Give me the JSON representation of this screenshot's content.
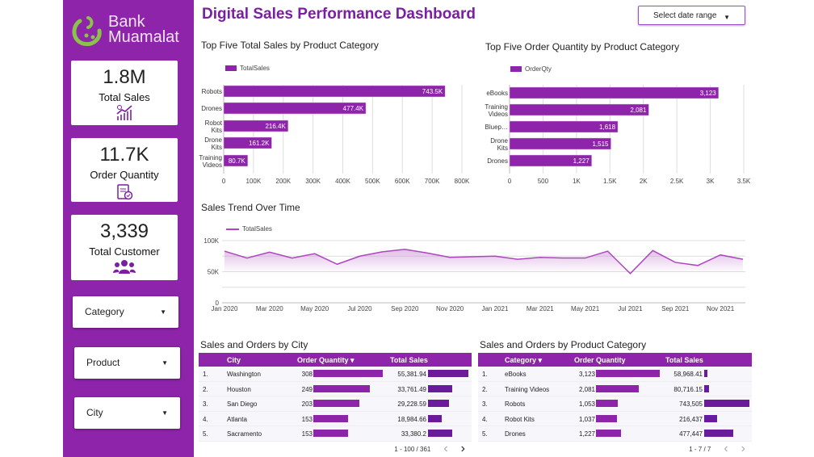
{
  "brand": {
    "line1": "Bank",
    "line2": "Muamalat",
    "logo_color": "#8bc34a"
  },
  "title": "Digital Sales Performance Dashboard",
  "date_range": {
    "label": "Select date range"
  },
  "kpis": [
    {
      "value": "1.8M",
      "label": "Total Sales",
      "icon": "chart-growth-icon"
    },
    {
      "value": "11.7K",
      "label": "Order Quantity",
      "icon": "clipboard-check-icon"
    },
    {
      "value": "3,339",
      "label": "Total Customer",
      "icon": "users-icon"
    }
  ],
  "filters": [
    {
      "label": "Category"
    },
    {
      "label": "Product"
    },
    {
      "label": "City"
    }
  ],
  "colors": {
    "accent": "#8e24aa",
    "bar_dark": "#6a1b9a",
    "sidebar": "#8e24aa"
  },
  "chart_data": [
    {
      "type": "bar",
      "orientation": "horizontal",
      "title": "Top Five Total Sales by Product Category",
      "legend": "TotalSales",
      "categories": [
        "Robots",
        "Drones",
        "Robot Kits",
        "Drone Kits",
        "Training Videos"
      ],
      "values": [
        743500,
        477400,
        216400,
        161200,
        80700
      ],
      "data_labels": [
        "743.5K",
        "477.4K",
        "216.4K",
        "161.2K",
        "80.7K"
      ],
      "xlim": [
        0,
        800000
      ],
      "ticks": [
        "0",
        "100K",
        "200K",
        "300K",
        "400K",
        "500K",
        "600K",
        "700K",
        "800K"
      ],
      "grid": true,
      "legend_position": "top-left"
    },
    {
      "type": "bar",
      "orientation": "horizontal",
      "title": "Top Five Order Quantity by Product Category",
      "legend": "OrderQty",
      "categories": [
        "eBooks",
        "Training Videos",
        "Bluep…",
        "Drone Kits",
        "Drones"
      ],
      "values": [
        3123,
        2081,
        1618,
        1515,
        1227
      ],
      "data_labels": [
        "3,123",
        "2,081",
        "1,618",
        "1,515",
        "1,227"
      ],
      "xlim": [
        0,
        3500
      ],
      "ticks": [
        "0",
        "500",
        "1K",
        "1.5K",
        "2K",
        "2.5K",
        "3K",
        "3.5K"
      ],
      "grid": true,
      "legend_position": "top-left"
    },
    {
      "type": "area",
      "title": "Sales Trend Over Time",
      "legend": "TotalSales",
      "x": [
        "2020-01",
        "2020-02",
        "2020-03",
        "2020-04",
        "2020-05",
        "2020-06",
        "2020-07",
        "2020-08",
        "2020-09",
        "2020-10",
        "2020-11",
        "2020-12",
        "2021-01",
        "2021-02",
        "2021-03",
        "2021-04",
        "2021-05",
        "2021-06",
        "2021-07",
        "2021-08",
        "2021-09",
        "2021-10",
        "2021-11",
        "2021-12"
      ],
      "values": [
        83000,
        72000,
        81500,
        72000,
        79000,
        62000,
        75000,
        82000,
        86000,
        80000,
        73000,
        74000,
        75000,
        70000,
        73000,
        72000,
        72000,
        83000,
        47000,
        84000,
        65000,
        60000,
        77000,
        70000
      ],
      "ylim": [
        0,
        100000
      ],
      "yticks": [
        "0",
        "50K",
        "100K"
      ],
      "xticks": [
        "Jan 2020",
        "Mar 2020",
        "May 2020",
        "Jul 2020",
        "Sep 2020",
        "Nov 2020",
        "Jan 2021",
        "Mar 2021",
        "May 2021",
        "Jul 2021",
        "Sep 2021",
        "Nov 2021"
      ],
      "grid": true,
      "legend_position": "top-left"
    }
  ],
  "city_table": {
    "title": "Sales and Orders by City",
    "headers": [
      "City",
      "Order Quantity ▾",
      "Total Sales"
    ],
    "rows": [
      {
        "n": "1.",
        "name": "Washington",
        "qty": "308",
        "qtyv": 308,
        "sales": "55,381.94",
        "salesv": 55381.94
      },
      {
        "n": "2.",
        "name": "Houston",
        "qty": "249",
        "qtyv": 249,
        "sales": "33,761.49",
        "salesv": 33761.49
      },
      {
        "n": "3.",
        "name": "San Diego",
        "qty": "203",
        "qtyv": 203,
        "sales": "29,228.59",
        "salesv": 29228.59
      },
      {
        "n": "4.",
        "name": "Atlanta",
        "qty": "153",
        "qtyv": 153,
        "sales": "18,984.66",
        "salesv": 18984.66
      },
      {
        "n": "5.",
        "name": "Sacramento",
        "qty": "153",
        "qtyv": 153,
        "sales": "33,380.2",
        "salesv": 33380.2
      }
    ],
    "pager": "1 - 100 / 361"
  },
  "category_table": {
    "title": "Sales and Orders by Product Category",
    "headers": [
      "Category ▾",
      "Order Quantity",
      "Total Sales"
    ],
    "rows": [
      {
        "n": "1.",
        "name": "eBooks",
        "qty": "3,123",
        "qtyv": 3123,
        "sales": "58,968.41",
        "salesv": 58968.41
      },
      {
        "n": "2.",
        "name": "Training Videos",
        "qty": "2,081",
        "qtyv": 2081,
        "sales": "80,716.15",
        "salesv": 80716.15
      },
      {
        "n": "3.",
        "name": "Robots",
        "qty": "1,053",
        "qtyv": 1053,
        "sales": "743,505",
        "salesv": 743505
      },
      {
        "n": "4.",
        "name": "Robot Kits",
        "qty": "1,037",
        "qtyv": 1037,
        "sales": "216,437",
        "salesv": 216437
      },
      {
        "n": "5.",
        "name": "Drones",
        "qty": "1,227",
        "qtyv": 1227,
        "sales": "477,447",
        "salesv": 477447
      }
    ],
    "pager": "1 - 7 / 7"
  }
}
